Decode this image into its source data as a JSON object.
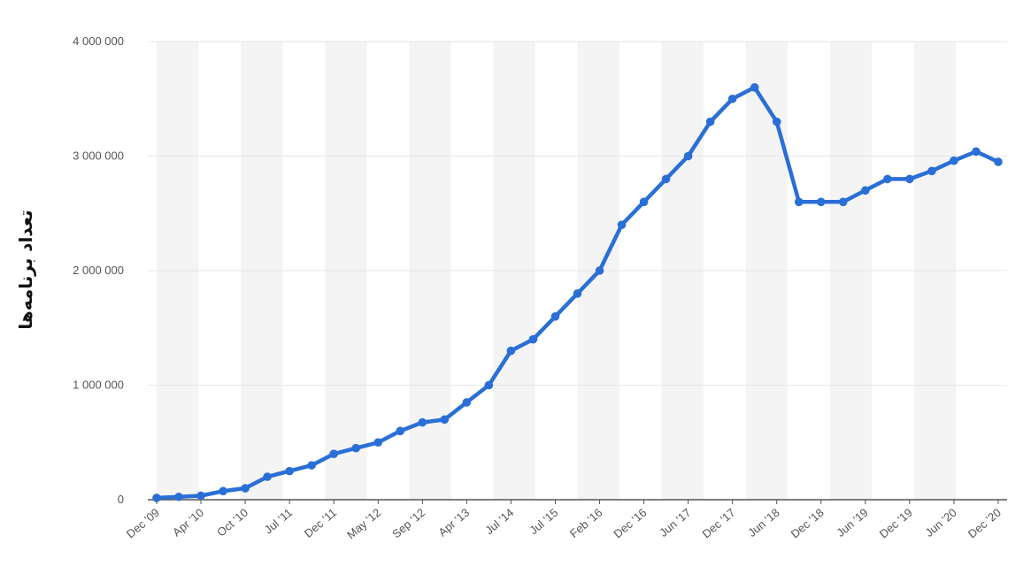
{
  "chart_data": {
    "type": "line",
    "title": "",
    "xlabel": "",
    "ylabel": "تعداد برنامه‌ها",
    "ylim": [
      0,
      4000000
    ],
    "y_ticks": [
      0,
      1000000,
      2000000,
      3000000,
      4000000
    ],
    "y_tick_labels": [
      "0",
      "1 000 000",
      "2 000 000",
      "3 000 000",
      "4 000 000"
    ],
    "x_tick_labels": [
      "Dec '09",
      "Apr '10",
      "Oct '10",
      "Jul '11",
      "Dec '11",
      "May '12",
      "Sep '12",
      "Apr '13",
      "Jul '14",
      "Jul '15",
      "Feb '16",
      "Dec '16",
      "Jun '17",
      "Dec '17",
      "Jun '18",
      "Dec '18",
      "Jun '19",
      "Dec '19",
      "Jun '20",
      "Dec '20"
    ],
    "grid": true,
    "legend": "none",
    "series": [
      {
        "color": "#2a6fd6",
        "values": [
          16000,
          25000,
          35000,
          75000,
          100000,
          200000,
          250000,
          300000,
          400000,
          450000,
          500000,
          600000,
          675000,
          700000,
          850000,
          1000000,
          1300000,
          1400000,
          1600000,
          1800000,
          2000000,
          2400000,
          2600000,
          2800000,
          3000000,
          3300000,
          3500000,
          3600000,
          3300000,
          2600000,
          2600000,
          2600000,
          2700000,
          2800000,
          2800000,
          2870000,
          2960000,
          3040000,
          2950000
        ]
      }
    ]
  },
  "colors": {
    "line": "#2a6fd6",
    "band_light": "#f4f4f4",
    "band_white": "#ffffff",
    "grid": "#e6e6e6",
    "axis": "#555555"
  }
}
